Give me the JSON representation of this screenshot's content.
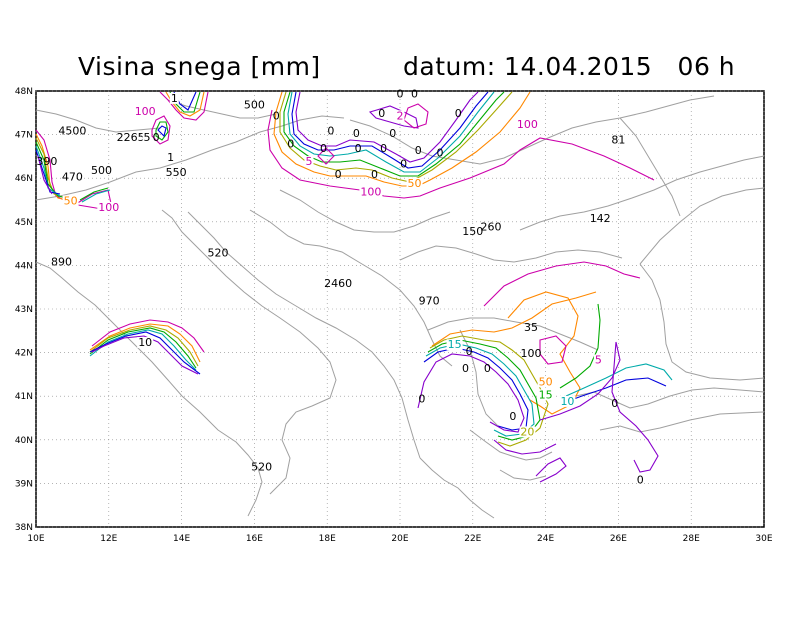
{
  "title": {
    "left": "Visina snega [mm]",
    "right": "datum: 14.04.2015   06 h"
  },
  "map": {
    "lon_range": [
      10,
      30
    ],
    "lat_range": [
      38,
      48
    ],
    "lon_ticks": [
      "10E",
      "12E",
      "14E",
      "16E",
      "18E",
      "20E",
      "22E",
      "24E",
      "26E",
      "28E",
      "30E"
    ],
    "lat_ticks": [
      "38N",
      "39N",
      "40N",
      "41N",
      "42N",
      "43N",
      "44N",
      "45N",
      "46N",
      "47N",
      "48N"
    ],
    "point_values": [
      {
        "t": "4500",
        "lon": 11.0,
        "lat": 47.0
      },
      {
        "t": "2265",
        "lon": 12.6,
        "lat": 46.85
      },
      {
        "t": "500",
        "lon": 16.0,
        "lat": 47.6
      },
      {
        "t": "390",
        "lon": 10.3,
        "lat": 46.3
      },
      {
        "t": "470",
        "lon": 11.0,
        "lat": 45.95
      },
      {
        "t": "500",
        "lon": 11.8,
        "lat": 46.1
      },
      {
        "t": "1",
        "lon": 13.7,
        "lat": 46.4
      },
      {
        "t": "550",
        "lon": 13.85,
        "lat": 46.05
      },
      {
        "t": "81",
        "lon": 26.0,
        "lat": 46.8
      },
      {
        "t": "142",
        "lon": 25.5,
        "lat": 45.0
      },
      {
        "t": "260",
        "lon": 22.5,
        "lat": 44.8
      },
      {
        "t": "150",
        "lon": 22.0,
        "lat": 44.7
      },
      {
        "t": "520",
        "lon": 15.0,
        "lat": 44.2
      },
      {
        "t": "890",
        "lon": 10.7,
        "lat": 44.0
      },
      {
        "t": "2460",
        "lon": 18.3,
        "lat": 43.5
      },
      {
        "t": "970",
        "lon": 20.8,
        "lat": 43.1
      },
      {
        "t": "35",
        "lon": 23.6,
        "lat": 42.5
      },
      {
        "t": "100",
        "lon": 23.6,
        "lat": 41.9
      },
      {
        "t": "0",
        "lon": 21.8,
        "lat": 41.55
      },
      {
        "t": "0",
        "lon": 22.4,
        "lat": 41.55
      },
      {
        "t": "0",
        "lon": 21.9,
        "lat": 41.95
      },
      {
        "t": "0",
        "lon": 23.1,
        "lat": 40.45
      },
      {
        "t": "0",
        "lon": 25.9,
        "lat": 40.75
      },
      {
        "t": "0",
        "lon": 26.6,
        "lat": 39.0
      },
      {
        "t": "0",
        "lon": 20.6,
        "lat": 40.85
      },
      {
        "t": "520",
        "lon": 16.2,
        "lat": 39.3
      },
      {
        "t": "0",
        "lon": 18.1,
        "lat": 47.0
      },
      {
        "t": "0",
        "lon": 18.8,
        "lat": 46.95
      },
      {
        "t": "0",
        "lon": 19.8,
        "lat": 46.95
      },
      {
        "t": "0",
        "lon": 17.0,
        "lat": 46.7
      },
      {
        "t": "0",
        "lon": 17.9,
        "lat": 46.6
      },
      {
        "t": "0",
        "lon": 18.85,
        "lat": 46.6
      },
      {
        "t": "0",
        "lon": 19.55,
        "lat": 46.6
      },
      {
        "t": "0",
        "lon": 20.1,
        "lat": 46.25
      },
      {
        "t": "0",
        "lon": 20.5,
        "lat": 46.55
      },
      {
        "t": "0",
        "lon": 18.3,
        "lat": 46.0
      },
      {
        "t": "0",
        "lon": 19.3,
        "lat": 46.0
      },
      {
        "t": "0",
        "lon": 16.6,
        "lat": 47.35
      },
      {
        "t": "0",
        "lon": 21.1,
        "lat": 46.5
      },
      {
        "t": "0",
        "lon": 21.6,
        "lat": 47.4
      },
      {
        "t": "0",
        "lon": 19.5,
        "lat": 47.4
      },
      {
        "t": "0",
        "lon": 20.0,
        "lat": 47.85
      },
      {
        "t": "0",
        "lon": 20.4,
        "lat": 47.85
      },
      {
        "t": "0",
        "lon": 13.3,
        "lat": 46.85
      }
    ],
    "contour_labels": [
      {
        "t": "100",
        "lon": 13.0,
        "lat": 47.45,
        "color": "#cc00aa"
      },
      {
        "t": "1",
        "lon": 13.8,
        "lat": 47.75,
        "color": "#000000"
      },
      {
        "t": "5",
        "lon": 13.05,
        "lat": 46.85,
        "color": "#000000"
      },
      {
        "t": "50",
        "lon": 10.95,
        "lat": 45.4,
        "color": "#ff8800"
      },
      {
        "t": "100",
        "lon": 12.0,
        "lat": 45.25,
        "color": "#cc00aa"
      },
      {
        "t": "10",
        "lon": 13.0,
        "lat": 42.15,
        "color": "#000000"
      },
      {
        "t": "5",
        "lon": 17.5,
        "lat": 46.3,
        "color": "#cc00aa"
      },
      {
        "t": "2",
        "lon": 20.0,
        "lat": 47.35,
        "color": "#cc00aa"
      },
      {
        "t": "100",
        "lon": 23.5,
        "lat": 47.15,
        "color": "#cc00aa"
      },
      {
        "t": "50",
        "lon": 20.4,
        "lat": 45.8,
        "color": "#ff8800"
      },
      {
        "t": "100",
        "lon": 19.2,
        "lat": 45.6,
        "color": "#cc00aa"
      },
      {
        "t": "15",
        "lon": 21.5,
        "lat": 42.1,
        "color": "#00aaaa"
      },
      {
        "t": "50",
        "lon": 24.0,
        "lat": 41.25,
        "color": "#ff8800"
      },
      {
        "t": "15",
        "lon": 24.0,
        "lat": 40.95,
        "color": "#00aa00"
      },
      {
        "t": "10",
        "lon": 24.6,
        "lat": 40.8,
        "color": "#00aaaa"
      },
      {
        "t": "5",
        "lon": 25.45,
        "lat": 41.75,
        "color": "#cc00aa"
      },
      {
        "t": "20",
        "lon": 23.5,
        "lat": 40.1,
        "color": "#aaaa00"
      }
    ],
    "contour_colors": {
      "c100": "#cc00aa",
      "c50": "#ff8800",
      "c20": "#aaaa00",
      "c15": "#00aa00",
      "c10": "#00aaaa",
      "c5": "#0000dd",
      "c1": "#8800cc"
    },
    "grid_color": "#888888",
    "coast_color": "#a0a0a0"
  }
}
